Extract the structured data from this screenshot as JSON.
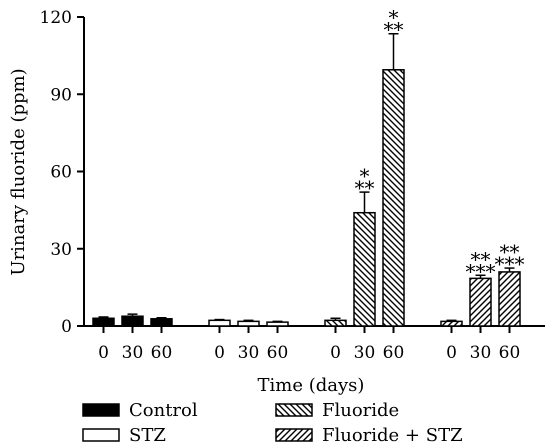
{
  "chart_data": {
    "type": "bar",
    "xlabel": "Time (days)",
    "ylabel": "Urinary fluoride (ppm)",
    "ylim": [
      0,
      120
    ],
    "yticks": [
      "0",
      "30",
      "60",
      "90",
      "120"
    ],
    "x_tick_labels": [
      "0",
      "30",
      "60"
    ],
    "legend_placement": "bottom",
    "groups": [
      {
        "name": "Control",
        "fill": "solid-black",
        "bars": [
          {
            "time": "0",
            "value": 3.0,
            "error": 0.5,
            "sig": []
          },
          {
            "time": "30",
            "value": 3.8,
            "error": 0.8,
            "sig": []
          },
          {
            "time": "60",
            "value": 2.8,
            "error": 0.4,
            "sig": []
          }
        ]
      },
      {
        "name": "STZ",
        "fill": "white",
        "bars": [
          {
            "time": "0",
            "value": 2.2,
            "error": 0.3,
            "sig": []
          },
          {
            "time": "30",
            "value": 1.8,
            "error": 0.4,
            "sig": []
          },
          {
            "time": "60",
            "value": 1.5,
            "error": 0.3,
            "sig": []
          }
        ]
      },
      {
        "name": "Fluoride",
        "fill": "hatch-backslash",
        "bars": [
          {
            "time": "0",
            "value": 2.2,
            "error": 0.8,
            "sig": []
          },
          {
            "time": "30",
            "value": 44.0,
            "error": 8.0,
            "sig": [
              "*",
              "**"
            ]
          },
          {
            "time": "60",
            "value": 99.5,
            "error": 14.0,
            "sig": [
              "*",
              "**"
            ]
          }
        ]
      },
      {
        "name": "Fluoride + STZ",
        "fill": "hatch-slash",
        "bars": [
          {
            "time": "0",
            "value": 1.8,
            "error": 0.4,
            "sig": []
          },
          {
            "time": "30",
            "value": 18.5,
            "error": 1.2,
            "sig": [
              "**",
              "***"
            ]
          },
          {
            "time": "60",
            "value": 21.0,
            "error": 1.5,
            "sig": [
              "**",
              "***"
            ]
          }
        ]
      }
    ],
    "legend": [
      "Control",
      "STZ",
      "Fluoride",
      "Fluoride + STZ"
    ]
  }
}
